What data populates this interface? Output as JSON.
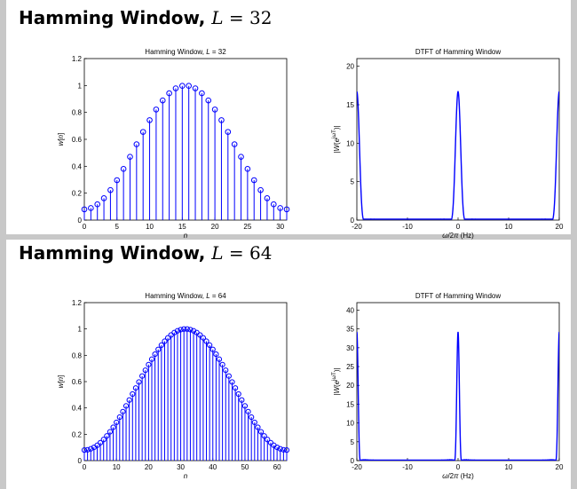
{
  "accent_color": "#0000ff",
  "panels": [
    {
      "title_prefix": "Hamming Window,",
      "title_var": "L",
      "title_eq": "= 32",
      "chart_data": [
        {
          "type": "stem",
          "title": "Hamming Window, L = 32",
          "xlabel": "n",
          "ylabel": "w[n]",
          "xlim": [
            0,
            31
          ],
          "ylim": [
            0,
            1.2
          ],
          "xticks": [
            0,
            5,
            10,
            15,
            20,
            25,
            30
          ],
          "yticks": [
            0,
            0.2,
            0.4,
            0.6,
            0.8,
            1,
            1.2
          ],
          "ytick_labels": [
            "0",
            "0.2",
            "0.4",
            "0.6",
            "0.8",
            "1",
            "1.2"
          ],
          "window": "hamming",
          "L": 32
        },
        {
          "type": "line",
          "title": "DTFT of Hamming Window",
          "xlabel": "ω/2π (Hz)",
          "ylabel": "|W(e^{jωT})|",
          "xlim": [
            -20,
            20
          ],
          "ylim": [
            0,
            21
          ],
          "xticks": [
            -20,
            -10,
            0,
            10,
            20
          ],
          "yticks": [
            0,
            5,
            10,
            15,
            20
          ],
          "peak": 16.7,
          "peak_positions": [
            -20,
            0,
            20
          ],
          "window": "hamming",
          "L": 32
        }
      ]
    },
    {
      "title_prefix": "Hamming Window,",
      "title_var": "L",
      "title_eq": "= 64",
      "chart_data": [
        {
          "type": "stem",
          "title": "Hamming Window, L = 64",
          "xlabel": "n",
          "ylabel": "w[n]",
          "xlim": [
            0,
            63
          ],
          "ylim": [
            0,
            1.2
          ],
          "xticks": [
            0,
            10,
            20,
            30,
            40,
            50,
            60
          ],
          "yticks": [
            0,
            0.2,
            0.4,
            0.6,
            0.8,
            1,
            1.2
          ],
          "ytick_labels": [
            "0",
            "0.2",
            "0.4",
            "0.6",
            "0.8",
            "1",
            "1.2"
          ],
          "window": "hamming",
          "L": 64
        },
        {
          "type": "line",
          "title": "DTFT of Hamming Window",
          "xlabel": "ω/2π (Hz)",
          "ylabel": "|W(e^{jωT})|",
          "xlim": [
            -20,
            20
          ],
          "ylim": [
            0,
            42
          ],
          "xticks": [
            -20,
            -10,
            0,
            10,
            20
          ],
          "yticks": [
            0,
            5,
            10,
            15,
            20,
            25,
            30,
            35,
            40
          ],
          "peak": 34.2,
          "peak_positions": [
            -20,
            0,
            20
          ],
          "window": "hamming",
          "L": 64
        }
      ]
    }
  ]
}
